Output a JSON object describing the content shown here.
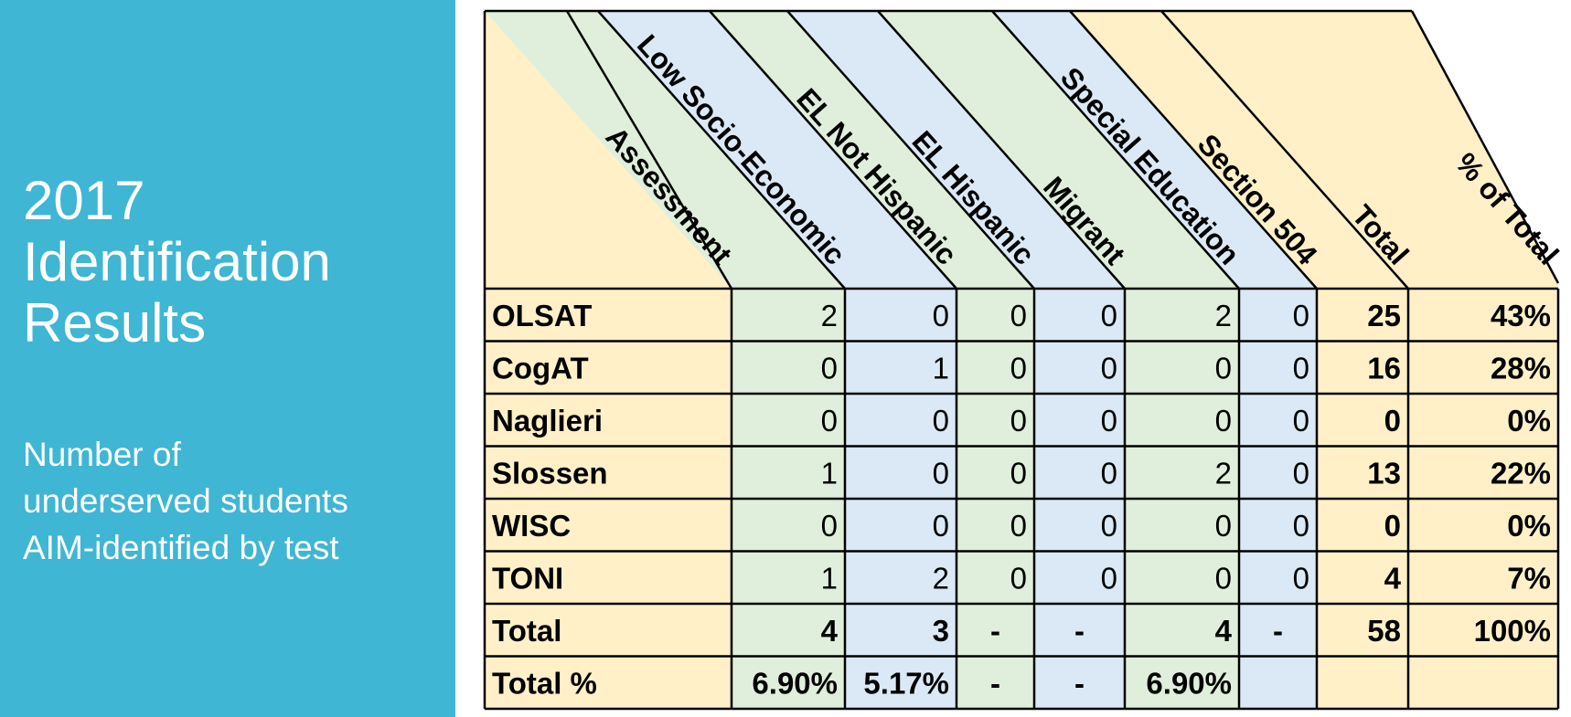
{
  "sidebar": {
    "title_lines": [
      "2017",
      "Identification",
      "Results"
    ],
    "subtitle_lines": [
      "Number of",
      "underserved students",
      "AIM-identified by test"
    ]
  },
  "table": {
    "columns": [
      {
        "label": "Assessment",
        "fill": "#fff0c8"
      },
      {
        "label": "Low Socio-Economic",
        "fill": "#e0efdb"
      },
      {
        "label": "EL Not Hispanic",
        "fill": "#dbe9f6"
      },
      {
        "label": "EL Hispanic",
        "fill": "#e0efdb"
      },
      {
        "label": "Migrant",
        "fill": "#dbe9f6"
      },
      {
        "label": "Special Education",
        "fill": "#e0efdb"
      },
      {
        "label": "Section 504",
        "fill": "#dbe9f6"
      },
      {
        "label": "Total",
        "fill": "#fff0c8"
      },
      {
        "label": "% of Total",
        "fill": "#fff0c8"
      }
    ],
    "rows": [
      {
        "label": "OLSAT",
        "cells": [
          "2",
          "0",
          "0",
          "0",
          "2",
          "0",
          "25",
          "43%"
        ]
      },
      {
        "label": "CogAT",
        "cells": [
          "0",
          "1",
          "0",
          "0",
          "0",
          "0",
          "16",
          "28%"
        ]
      },
      {
        "label": "Naglieri",
        "cells": [
          "0",
          "0",
          "0",
          "0",
          "0",
          "0",
          "0",
          "0%"
        ]
      },
      {
        "label": "Slossen",
        "cells": [
          "1",
          "0",
          "0",
          "0",
          "2",
          "0",
          "13",
          "22%"
        ]
      },
      {
        "label": "WISC",
        "cells": [
          "0",
          "0",
          "0",
          "0",
          "0",
          "0",
          "0",
          "0%"
        ]
      },
      {
        "label": "TONI",
        "cells": [
          "1",
          "2",
          "0",
          "0",
          "0",
          "0",
          "4",
          "7%"
        ]
      }
    ],
    "total_row": {
      "label": "Total",
      "cells": [
        "4",
        "3",
        "-",
        "-",
        "4",
        "-",
        "58",
        "100%"
      ]
    },
    "percent_row": {
      "label": "Total %",
      "cells": [
        "6.90%",
        "5.17%",
        "-",
        "-",
        "6.90%",
        "",
        "",
        ""
      ]
    }
  }
}
